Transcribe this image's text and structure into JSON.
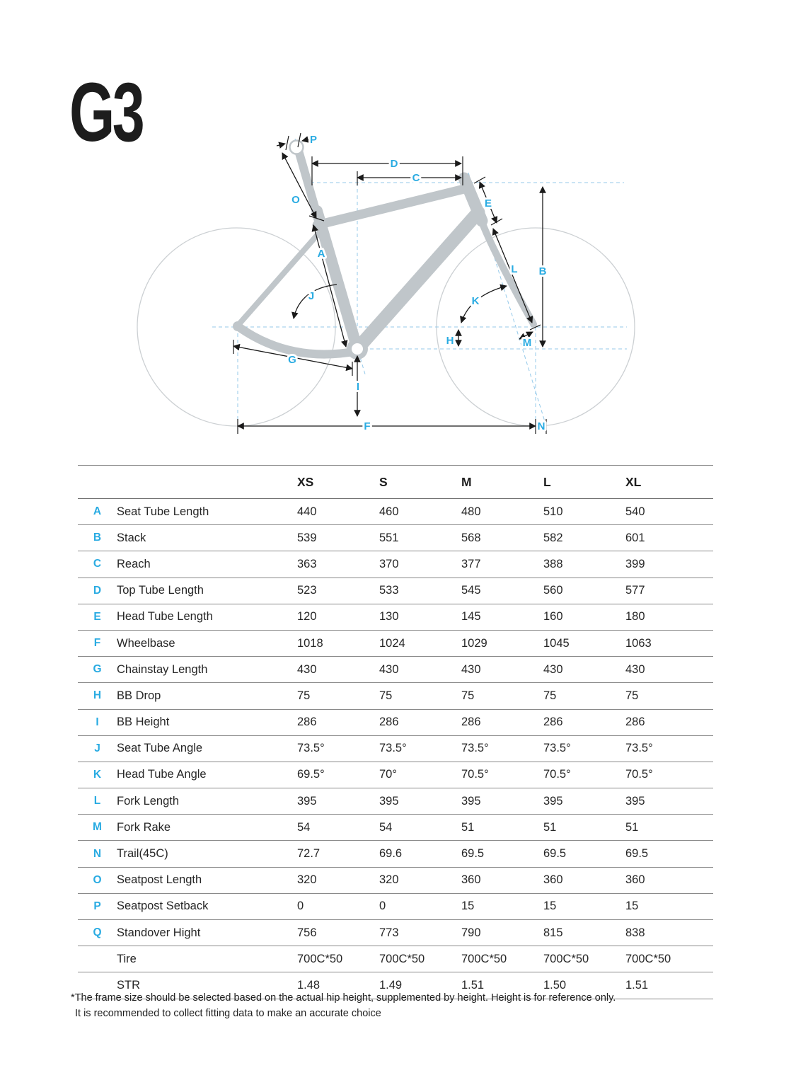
{
  "page": {
    "title": "G3"
  },
  "diagram": {
    "label_color": "#29ABE2",
    "frame_color": "#c0c6ca",
    "wheel_color": "#ccd0d3",
    "dash_color": "#94c9ea",
    "dim_color": "#1a1a1a",
    "labels": {
      "P": "P",
      "D": "D",
      "C": "C",
      "O": "O",
      "A": "A",
      "E": "E",
      "L": "L",
      "B": "B",
      "J": "J",
      "K": "K",
      "H": "H",
      "M": "M",
      "G": "G",
      "I": "I",
      "F": "F",
      "N": "N"
    }
  },
  "table": {
    "size_headers": [
      "XS",
      "S",
      "M",
      "L",
      "XL"
    ],
    "rows": [
      {
        "key": "A",
        "label": "Seat Tube Length",
        "values": [
          "440",
          "460",
          "480",
          "510",
          "540"
        ]
      },
      {
        "key": "B",
        "label": "Stack",
        "values": [
          "539",
          "551",
          "568",
          "582",
          "601"
        ]
      },
      {
        "key": "C",
        "label": "Reach",
        "values": [
          "363",
          "370",
          "377",
          "388",
          "399"
        ]
      },
      {
        "key": "D",
        "label": "Top Tube Length",
        "values": [
          "523",
          "533",
          "545",
          "560",
          "577"
        ]
      },
      {
        "key": "E",
        "label": "Head Tube Length",
        "values": [
          "120",
          "130",
          "145",
          "160",
          "180"
        ]
      },
      {
        "key": "F",
        "label": "Wheelbase",
        "values": [
          "1018",
          "1024",
          "1029",
          "1045",
          "1063"
        ]
      },
      {
        "key": "G",
        "label": "Chainstay Length",
        "values": [
          "430",
          "430",
          "430",
          "430",
          "430"
        ]
      },
      {
        "key": "H",
        "label": "BB Drop",
        "values": [
          "75",
          "75",
          "75",
          "75",
          "75"
        ]
      },
      {
        "key": "I",
        "label": "BB Height",
        "values": [
          "286",
          "286",
          "286",
          "286",
          "286"
        ]
      },
      {
        "key": "J",
        "label": "Seat Tube Angle",
        "values": [
          "73.5°",
          "73.5°",
          "73.5°",
          "73.5°",
          "73.5°"
        ]
      },
      {
        "key": "K",
        "label": "Head Tube Angle",
        "values": [
          "69.5°",
          "70°",
          "70.5°",
          "70.5°",
          "70.5°"
        ]
      },
      {
        "key": "L",
        "label": "Fork Length",
        "values": [
          "395",
          "395",
          "395",
          "395",
          "395"
        ]
      },
      {
        "key": "M",
        "label": "Fork Rake",
        "values": [
          "54",
          "54",
          "51",
          "51",
          "51"
        ]
      },
      {
        "key": "N",
        "label": "Trail(45C)",
        "values": [
          "72.7",
          "69.6",
          "69.5",
          "69.5",
          "69.5"
        ]
      },
      {
        "key": "O",
        "label": "Seatpost Length",
        "values": [
          "320",
          "320",
          "360",
          "360",
          "360"
        ]
      },
      {
        "key": "P",
        "label": "Seatpost Setback",
        "values": [
          "0",
          "0",
          "15",
          "15",
          "15"
        ]
      },
      {
        "key": "Q",
        "label": "Standover Hight",
        "values": [
          "756",
          "773",
          "790",
          "815",
          "838"
        ]
      },
      {
        "key": "",
        "label": "Tire",
        "values": [
          "700C*50",
          "700C*50",
          "700C*50",
          "700C*50",
          "700C*50"
        ]
      },
      {
        "key": "",
        "label": "STR",
        "values": [
          "1.48",
          "1.49",
          "1.51",
          "1.50",
          "1.51"
        ]
      }
    ]
  },
  "footnote": {
    "line1": "*The frame size should be selected based on the actual hip height, supplemented by height. Height is for reference only.",
    "line2": "It is recommended to collect fitting data to make an accurate choice"
  }
}
